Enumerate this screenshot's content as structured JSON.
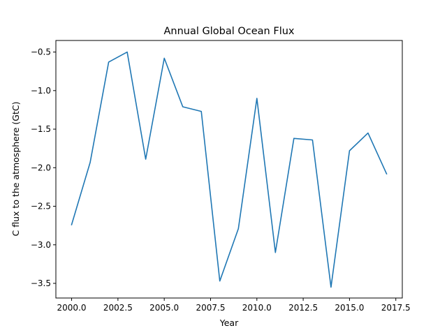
{
  "chart_data": {
    "type": "line",
    "title": "Annual Global Ocean Flux",
    "xlabel": "Year",
    "ylabel": "C flux to the atmosphere (GtC)",
    "xlim": [
      1999.15,
      2017.85
    ],
    "ylim": [
      -3.69,
      -0.35
    ],
    "x_ticks": [
      2000.0,
      2002.5,
      2005.0,
      2007.5,
      2010.0,
      2012.5,
      2015.0,
      2017.5
    ],
    "x_tick_labels": [
      "2000.0",
      "2002.5",
      "2005.0",
      "2007.5",
      "2010.0",
      "2012.5",
      "2015.0",
      "2017.5"
    ],
    "y_ticks": [
      -3.5,
      -3.0,
      -2.5,
      -2.0,
      -1.5,
      -1.0,
      -0.5
    ],
    "y_tick_labels": [
      "−3.5",
      "−3.0",
      "−2.5",
      "−2.0",
      "−1.5",
      "−1.0",
      "−0.5"
    ],
    "grid": false,
    "series": [
      {
        "color": "#1f77b4",
        "x": [
          2000,
          2001,
          2002,
          2003,
          2004,
          2005,
          2006,
          2007,
          2008,
          2009,
          2010,
          2011,
          2012,
          2013,
          2014,
          2015,
          2016,
          2017
        ],
        "y": [
          -2.74,
          -1.93,
          -0.63,
          -0.5,
          -1.89,
          -0.58,
          -1.21,
          -1.27,
          -3.47,
          -2.79,
          -1.1,
          -3.1,
          -1.62,
          -1.64,
          -3.55,
          -1.78,
          -1.55,
          -2.08
        ]
      }
    ]
  }
}
